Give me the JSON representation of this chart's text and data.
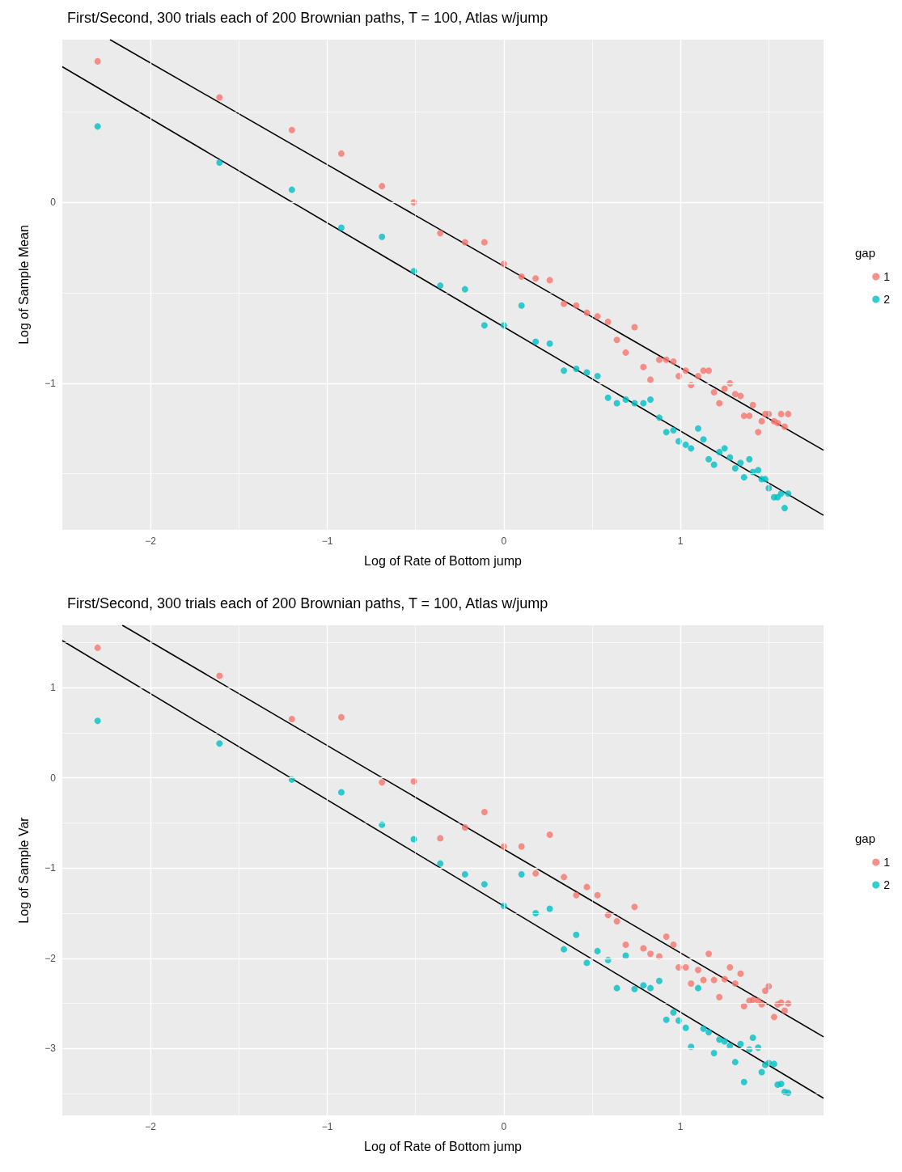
{
  "chart_data": [
    {
      "type": "scatter",
      "title": "First/Second, 300 trials each of 200 Brownian paths, T = 100, Atlas w/jump",
      "xlabel": "Log of Rate of Bottom jump",
      "ylabel": "Log of Sample Mean",
      "legend_title": "gap",
      "x": [
        -2.3,
        -1.61,
        -1.2,
        -0.92,
        -0.69,
        -0.51,
        -0.36,
        -0.22,
        -0.11,
        0.0,
        0.1,
        0.18,
        0.26,
        0.34,
        0.41,
        0.47,
        0.53,
        0.59,
        0.64,
        0.69,
        0.74,
        0.79,
        0.83,
        0.88,
        0.92,
        0.96,
        0.99,
        1.03,
        1.06,
        1.1,
        1.13,
        1.16,
        1.19,
        1.22,
        1.25,
        1.28,
        1.31,
        1.34,
        1.36,
        1.39,
        1.41,
        1.44,
        1.46,
        1.48,
        1.5,
        1.53,
        1.55,
        1.57,
        1.59,
        1.61
      ],
      "series": [
        {
          "name": "1",
          "color": "#f8766d",
          "marker": "circle",
          "values": [
            0.78,
            0.58,
            0.4,
            0.27,
            0.09,
            0.0,
            -0.17,
            -0.22,
            -0.22,
            -0.34,
            -0.41,
            -0.42,
            -0.43,
            -0.56,
            -0.57,
            -0.61,
            -0.63,
            -0.66,
            -0.76,
            -0.83,
            -0.69,
            -0.91,
            -0.98,
            -0.87,
            -0.87,
            -0.88,
            -0.96,
            -0.93,
            -1.01,
            -0.96,
            -0.93,
            -0.93,
            -1.05,
            -1.11,
            -1.03,
            -1.0,
            -1.06,
            -1.07,
            -1.18,
            -1.18,
            -1.12,
            -1.27,
            -1.21,
            -1.17,
            -1.17,
            -1.21,
            -1.22,
            -1.17,
            -1.24,
            -1.17
          ]
        },
        {
          "name": "2",
          "color": "#00bfc4",
          "marker": "circle",
          "values": [
            0.42,
            0.22,
            0.07,
            -0.14,
            -0.19,
            -0.38,
            -0.46,
            -0.48,
            -0.68,
            -0.68,
            -0.57,
            -0.77,
            -0.78,
            -0.93,
            -0.92,
            -0.94,
            -0.96,
            -1.08,
            -1.11,
            -1.09,
            -1.11,
            -1.11,
            -1.09,
            -1.19,
            -1.27,
            -1.26,
            -1.32,
            -1.34,
            -1.36,
            -1.25,
            -1.31,
            -1.42,
            -1.45,
            -1.38,
            -1.36,
            -1.41,
            -1.47,
            -1.44,
            -1.52,
            -1.42,
            -1.49,
            -1.48,
            -1.53,
            -1.53,
            -1.58,
            -1.63,
            -1.63,
            -1.61,
            -1.69,
            -1.61
          ]
        },
        {
          "type": "line",
          "color": "#000000",
          "x": [
            -2.23,
            1.81
          ],
          "values": [
            0.9,
            -1.37
          ]
        },
        {
          "type": "line",
          "color": "#000000",
          "x": [
            -2.5,
            1.81
          ],
          "values": [
            0.75,
            -1.73
          ]
        }
      ],
      "xlim": [
        -2.5,
        1.81
      ],
      "ylim": [
        -1.81,
        0.9
      ],
      "xticks": [
        {
          "value": -2,
          "label": "−2"
        },
        {
          "value": -1.5,
          "label": null
        },
        {
          "value": -1,
          "label": "−1"
        },
        {
          "value": -0.5,
          "label": null
        },
        {
          "value": 0,
          "label": "0"
        },
        {
          "value": 0.5,
          "label": null
        },
        {
          "value": 1,
          "label": "1"
        },
        {
          "value": 1.5,
          "label": null
        }
      ],
      "yticks": [
        {
          "value": -1.5,
          "label": null
        },
        {
          "value": -1,
          "label": "−1"
        },
        {
          "value": -0.5,
          "label": null
        },
        {
          "value": 0,
          "label": "0"
        },
        {
          "value": 0.5,
          "label": null
        }
      ],
      "grid": true,
      "legend": "right"
    },
    {
      "type": "scatter",
      "title": "First/Second, 300 trials each of 200 Brownian paths, T = 100, Atlas w/jump",
      "xlabel": "Log of Rate of Bottom jump",
      "ylabel": "Log of Sample Var",
      "legend_title": "gap",
      "x": [
        -2.3,
        -1.61,
        -1.2,
        -0.92,
        -0.69,
        -0.51,
        -0.36,
        -0.22,
        -0.11,
        0.0,
        0.1,
        0.18,
        0.26,
        0.34,
        0.41,
        0.47,
        0.53,
        0.59,
        0.64,
        0.69,
        0.74,
        0.79,
        0.83,
        0.88,
        0.92,
        0.96,
        0.99,
        1.03,
        1.06,
        1.1,
        1.13,
        1.16,
        1.19,
        1.22,
        1.25,
        1.28,
        1.31,
        1.34,
        1.36,
        1.39,
        1.41,
        1.44,
        1.46,
        1.48,
        1.5,
        1.53,
        1.55,
        1.57,
        1.59,
        1.61
      ],
      "series": [
        {
          "name": "1",
          "color": "#f8766d",
          "marker": "circle",
          "values": [
            1.44,
            1.13,
            0.65,
            0.67,
            -0.05,
            -0.04,
            -0.67,
            -0.55,
            -0.38,
            -0.76,
            -0.76,
            -1.06,
            -0.63,
            -1.1,
            -1.3,
            -1.21,
            -1.3,
            -1.52,
            -1.59,
            -1.85,
            -1.43,
            -1.89,
            -1.95,
            -1.98,
            -1.76,
            -1.85,
            -2.1,
            -2.1,
            -2.28,
            -2.13,
            -2.24,
            -1.95,
            -2.24,
            -2.43,
            -2.23,
            -2.1,
            -2.28,
            -2.17,
            -2.53,
            -2.47,
            -2.46,
            -2.47,
            -2.51,
            -2.36,
            -2.31,
            -2.65,
            -2.51,
            -2.49,
            -2.58,
            -2.5
          ]
        },
        {
          "name": "2",
          "color": "#00bfc4",
          "marker": "circle",
          "values": [
            0.63,
            0.38,
            -0.02,
            -0.16,
            -0.52,
            -0.68,
            -0.95,
            -1.07,
            -1.18,
            -1.42,
            -1.07,
            -1.5,
            -1.45,
            -1.9,
            -1.74,
            -2.05,
            -1.92,
            -2.02,
            -2.33,
            -1.97,
            -2.34,
            -2.3,
            -2.33,
            -2.25,
            -2.68,
            -2.6,
            -2.69,
            -2.77,
            -2.98,
            -2.33,
            -2.78,
            -2.82,
            -3.05,
            -2.9,
            -2.92,
            -2.97,
            -3.15,
            -2.95,
            -3.37,
            -3.01,
            -2.88,
            -2.99,
            -3.26,
            -3.18,
            -3.16,
            -3.17,
            -3.4,
            -3.39,
            -3.48,
            -3.49
          ]
        },
        {
          "type": "line",
          "color": "#000000",
          "x": [
            -2.16,
            1.81
          ],
          "values": [
            1.69,
            -2.87
          ]
        },
        {
          "type": "line",
          "color": "#000000",
          "x": [
            -2.5,
            1.81
          ],
          "values": [
            1.52,
            -3.55
          ]
        }
      ],
      "xlim": [
        -2.5,
        1.81
      ],
      "ylim": [
        -3.74,
        1.69
      ],
      "xticks": [
        {
          "value": -2,
          "label": "−2"
        },
        {
          "value": -1.5,
          "label": null
        },
        {
          "value": -1,
          "label": "−1"
        },
        {
          "value": -0.5,
          "label": null
        },
        {
          "value": 0,
          "label": "0"
        },
        {
          "value": 0.5,
          "label": null
        },
        {
          "value": 1,
          "label": "1"
        },
        {
          "value": 1.5,
          "label": null
        }
      ],
      "yticks": [
        {
          "value": -3.5,
          "label": null
        },
        {
          "value": -3,
          "label": "−3"
        },
        {
          "value": -2.5,
          "label": null
        },
        {
          "value": -2,
          "label": "−2"
        },
        {
          "value": -1.5,
          "label": null
        },
        {
          "value": -1,
          "label": "−1"
        },
        {
          "value": -0.5,
          "label": null
        },
        {
          "value": 0,
          "label": "0"
        },
        {
          "value": 0.5,
          "label": null
        },
        {
          "value": 1,
          "label": "1"
        },
        {
          "value": 1.5,
          "label": null
        }
      ],
      "grid": true,
      "legend": "right"
    }
  ]
}
